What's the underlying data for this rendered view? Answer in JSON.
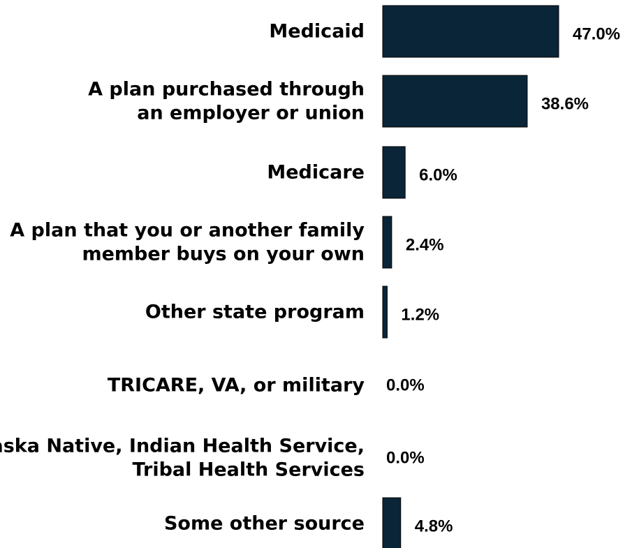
{
  "chart_data": {
    "type": "bar",
    "orientation": "horizontal",
    "categories": [
      [
        "Medicaid"
      ],
      [
        "A plan purchased through",
        "an employer or union"
      ],
      [
        "Medicare"
      ],
      [
        "A plan that you or another family",
        "member buys on your own"
      ],
      [
        "Other state program"
      ],
      [
        "TRICARE, VA, or military"
      ],
      [
        "Alaska Native, Indian Health Service,",
        "Tribal Health Services"
      ],
      [
        "Some other source"
      ]
    ],
    "values": [
      47.0,
      38.6,
      6.0,
      2.4,
      1.2,
      0.0,
      0.0,
      4.8
    ],
    "value_labels": [
      "47.0%",
      "38.6%",
      "6.0%",
      "2.4%",
      "1.2%",
      "0.0%",
      "0.0%",
      "4.8%"
    ],
    "xlim": [
      0,
      50
    ],
    "grid": false,
    "legend": "none",
    "bar_color": "#0b2538"
  }
}
